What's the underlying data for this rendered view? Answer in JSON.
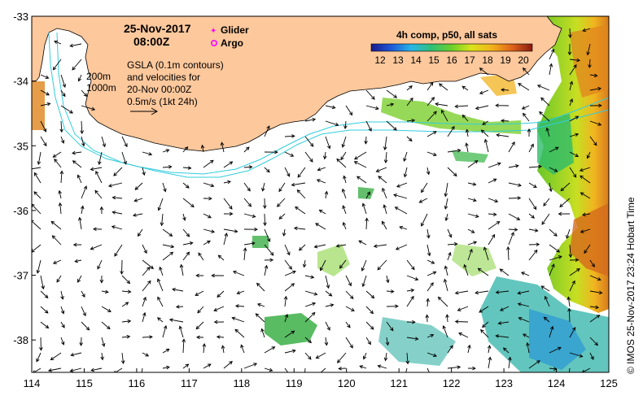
{
  "map": {
    "date": "25-Nov-2017",
    "time": "08:00Z",
    "legend": {
      "glider_label": "Glider",
      "argo_label": "Argo",
      "glider_color": "#ff00ff",
      "argo_color": "#ff00ff"
    },
    "contour_labels": {
      "shelf_200": "200m",
      "shelf_1000": "1000m"
    },
    "gsla_text": {
      "line1": "GSLA (0.1m contours)",
      "line2": "and velocities for",
      "line3": "20-Nov 00:00Z",
      "line4": "0.5m/s (1kt 24h)"
    },
    "colorbar": {
      "title": "4h comp, p50, all sats",
      "ticks": [
        "12",
        "13",
        "14",
        "15",
        "16",
        "17",
        "18",
        "19",
        "20"
      ],
      "min": 12,
      "max": 20.5
    },
    "credit": "© IMOS 25-Nov-2017 23:24 Hobart Time",
    "axes": {
      "x_ticks": [
        "114",
        "115",
        "116",
        "117",
        "118",
        "119",
        "120",
        "121",
        "122",
        "123",
        "124",
        "125"
      ],
      "y_ticks": [
        "-33",
        "-34",
        "-35",
        "-36",
        "-37",
        "-38"
      ],
      "lon_range": [
        114,
        125
      ],
      "lat_range": [
        -38.5,
        -33
      ]
    },
    "colors": {
      "land": "#fdc89c",
      "shelf_contour": "#33ccdd",
      "arrows": "#000000"
    }
  }
}
